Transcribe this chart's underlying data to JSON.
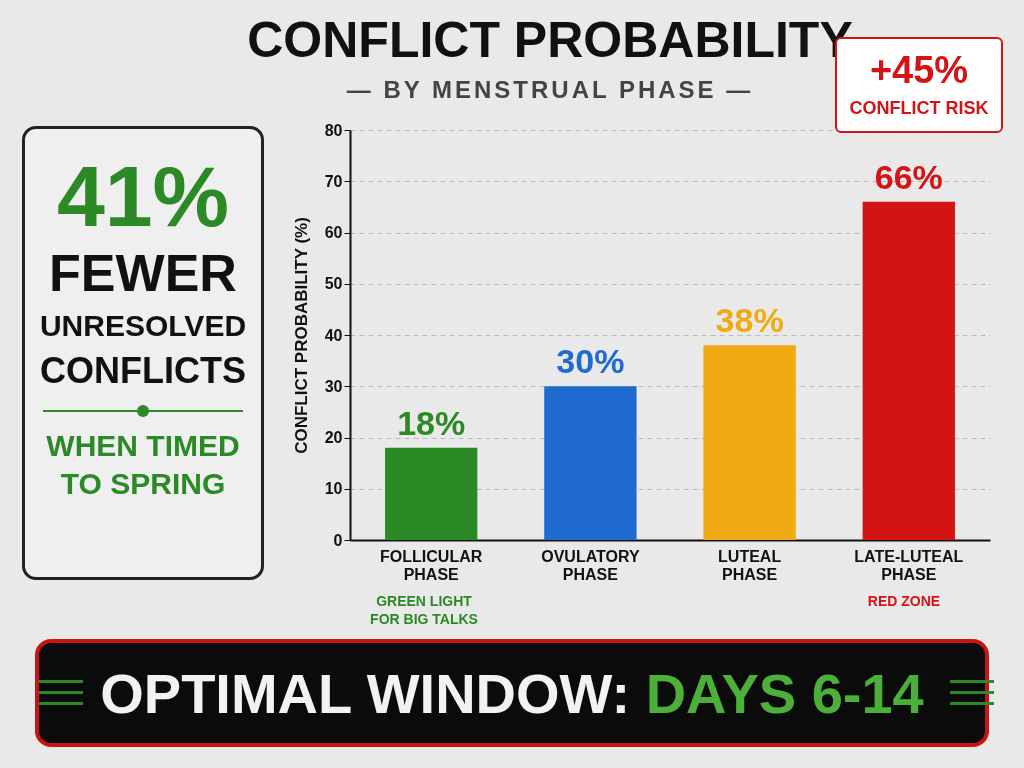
{
  "chart_data": {
    "type": "bar",
    "title": "CONFLICT PROBABILITY",
    "subtitle": "— BY MENSTRUAL PHASE —",
    "ylabel": "CONFLICT PROBABILITY (%)",
    "categories": [
      "FOLLICULAR PHASE",
      "OVULATORY PHASE",
      "LUTEAL PHASE",
      "LATE-LUTEAL PHASE"
    ],
    "values": [
      18,
      30,
      38,
      66
    ],
    "colors": [
      "#2b8a25",
      "#1f6bd0",
      "#f0aa14",
      "#d41414"
    ],
    "value_labels": [
      "18%",
      "30%",
      "38%",
      "66%"
    ],
    "ylim": [
      0,
      80
    ],
    "yticks": [
      0,
      10,
      20,
      30,
      40,
      50,
      60,
      70,
      80
    ],
    "grid": "y",
    "legend": false,
    "annotations": [
      "41%",
      "FEWER",
      "UNRESOLVED CONFLICTS",
      "WHEN TIMED TO SPRING",
      "+45% CONFLICT RISK",
      "OPTIMAL WINDOW:",
      "DAYS 6-14",
      "GREEN LIGHT FOR BIG TALKS",
      "RED ZONE"
    ]
  }
}
